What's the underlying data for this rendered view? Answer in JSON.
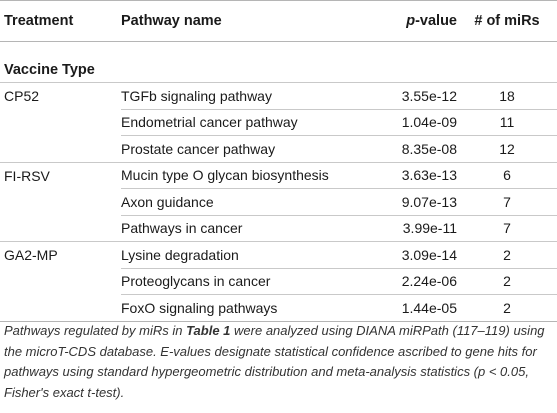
{
  "table": {
    "headers": {
      "treatment": "Treatment",
      "pathway": "Pathway name",
      "pvalue_p": "p",
      "pvalue_rest": "-value",
      "mirs": "# of miRs"
    },
    "group_label": "Vaccine Type",
    "rows": [
      {
        "treatment": "CP52",
        "pathway": "TGFb signaling pathway",
        "pvalue": "3.55e-12",
        "mirs": "18"
      },
      {
        "treatment": "",
        "pathway": "Endometrial cancer pathway",
        "pvalue": "1.04e-09",
        "mirs": "11"
      },
      {
        "treatment": "",
        "pathway": "Prostate cancer pathway",
        "pvalue": "8.35e-08",
        "mirs": "12"
      },
      {
        "treatment": "FI-RSV",
        "pathway": "Mucin type O glycan biosynthesis",
        "pvalue": "3.63e-13",
        "mirs": "6"
      },
      {
        "treatment": "",
        "pathway": "Axon guidance",
        "pvalue": "9.07e-13",
        "mirs": "7"
      },
      {
        "treatment": "",
        "pathway": "Pathways in cancer",
        "pvalue": "3.99e-11",
        "mirs": "7"
      },
      {
        "treatment": "GA2-MP",
        "pathway": "Lysine degradation",
        "pvalue": "3.09e-14",
        "mirs": "2"
      },
      {
        "treatment": "",
        "pathway": "Proteoglycans in cancer",
        "pvalue": "2.24e-06",
        "mirs": "2"
      },
      {
        "treatment": "",
        "pathway": "FoxO signaling pathways",
        "pvalue": "1.44e-05",
        "mirs": "2"
      }
    ]
  },
  "caption": {
    "part1": "Pathways regulated by miRs in ",
    "table_ref": "Table 1",
    "part2": " were analyzed using DIANA miRPath (",
    "ref1": "117",
    "ref_dash": "–",
    "ref2": "119",
    "part3": ") using the microT-CDS database. E-values designate statistical confidence ascribed to gene hits for pathways using standard hypergeometric distribution and meta-analysis statistics (p < 0.05, Fisher's exact t-test)."
  }
}
